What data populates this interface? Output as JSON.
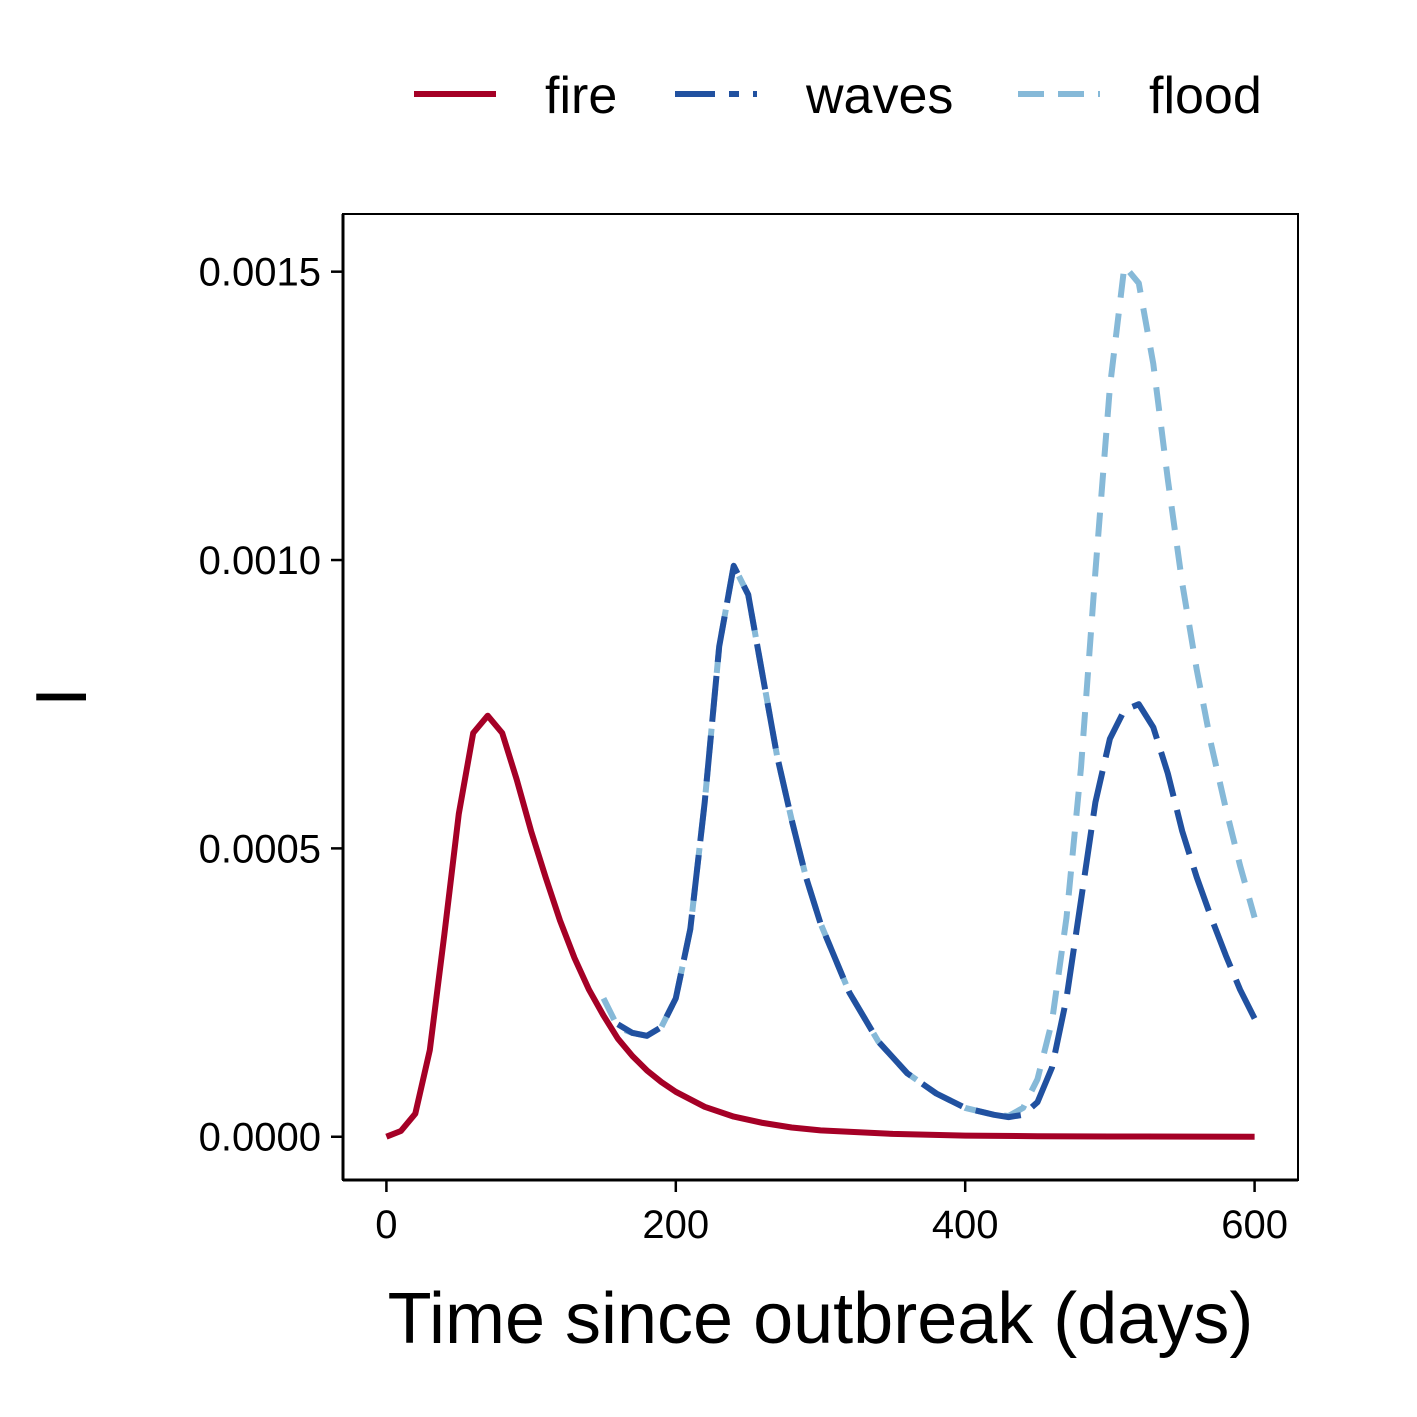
{
  "chart_data": {
    "type": "line",
    "title": "",
    "xlabel": "Time since outbreak (days)",
    "ylabel": "I",
    "xlim": [
      -30,
      630
    ],
    "ylim": [
      -7.5e-05,
      0.0016
    ],
    "x_ticks": [
      0,
      200,
      400,
      600
    ],
    "x_tick_labels": [
      "0",
      "200",
      "400",
      "600"
    ],
    "y_ticks": [
      0,
      0.0005,
      0.001,
      0.0015
    ],
    "y_tick_labels": [
      "0.0000",
      "0.0005",
      "0.0010",
      "0.0015"
    ],
    "grid": false,
    "legend_position": "top",
    "series": [
      {
        "name": "fire",
        "color": "#A50026",
        "style": "solid",
        "points": [
          [
            0,
            0
          ],
          [
            10,
            1e-05
          ],
          [
            20,
            4e-05
          ],
          [
            30,
            0.00015
          ],
          [
            40,
            0.00035
          ],
          [
            50,
            0.00056
          ],
          [
            60,
            0.0007
          ],
          [
            70,
            0.00073
          ],
          [
            80,
            0.0007
          ],
          [
            90,
            0.00062
          ],
          [
            100,
            0.00053
          ],
          [
            110,
            0.00045
          ],
          [
            120,
            0.000375
          ],
          [
            130,
            0.00031
          ],
          [
            140,
            0.000255
          ],
          [
            150,
            0.00021
          ],
          [
            160,
            0.00017
          ],
          [
            170,
            0.00014
          ],
          [
            180,
            0.000115
          ],
          [
            190,
            9.5e-05
          ],
          [
            200,
            7.8e-05
          ],
          [
            220,
            5.2e-05
          ],
          [
            240,
            3.5e-05
          ],
          [
            260,
            2.4e-05
          ],
          [
            280,
            1.6e-05
          ],
          [
            300,
            1.1e-05
          ],
          [
            350,
            5e-06
          ],
          [
            400,
            2e-06
          ],
          [
            450,
            1e-06
          ],
          [
            500,
            5e-07
          ],
          [
            600,
            0
          ]
        ]
      },
      {
        "name": "waves",
        "color": "#2151A0",
        "style": "longdash",
        "points": [
          [
            160,
            0.000195
          ],
          [
            170,
            0.00018
          ],
          [
            180,
            0.000175
          ],
          [
            190,
            0.00019
          ],
          [
            200,
            0.00024
          ],
          [
            210,
            0.00036
          ],
          [
            220,
            0.00058
          ],
          [
            230,
            0.00085
          ],
          [
            240,
            0.00099
          ],
          [
            250,
            0.00094
          ],
          [
            260,
            0.0008
          ],
          [
            270,
            0.00066
          ],
          [
            280,
            0.00055
          ],
          [
            290,
            0.00045
          ],
          [
            300,
            0.00037
          ],
          [
            320,
            0.00025
          ],
          [
            340,
            0.000165
          ],
          [
            360,
            0.00011
          ],
          [
            380,
            7.5e-05
          ],
          [
            400,
            5e-05
          ],
          [
            420,
            3.8e-05
          ],
          [
            430,
            3.4e-05
          ],
          [
            440,
            3.8e-05
          ],
          [
            450,
            6e-05
          ],
          [
            460,
            0.00012
          ],
          [
            470,
            0.00024
          ],
          [
            480,
            0.00041
          ],
          [
            490,
            0.00058
          ],
          [
            500,
            0.00069
          ],
          [
            510,
            0.00074
          ],
          [
            520,
            0.00075
          ],
          [
            530,
            0.00071
          ],
          [
            540,
            0.00063
          ],
          [
            550,
            0.00053
          ],
          [
            560,
            0.00045
          ],
          [
            570,
            0.00038
          ],
          [
            580,
            0.000315
          ],
          [
            590,
            0.000255
          ],
          [
            600,
            0.000205
          ]
        ]
      },
      {
        "name": "flood",
        "color": "#86B9D8",
        "style": "dashed",
        "points": [
          [
            150,
            0.00024
          ],
          [
            160,
            0.00019
          ],
          [
            170,
            0.00018
          ],
          [
            180,
            0.000175
          ],
          [
            190,
            0.00019
          ],
          [
            200,
            0.00024
          ],
          [
            210,
            0.00036
          ],
          [
            220,
            0.00058
          ],
          [
            230,
            0.00085
          ],
          [
            240,
            0.00099
          ],
          [
            250,
            0.00094
          ],
          [
            260,
            0.0008
          ],
          [
            270,
            0.00066
          ],
          [
            280,
            0.00055
          ],
          [
            290,
            0.00045
          ],
          [
            300,
            0.00037
          ],
          [
            320,
            0.00025
          ],
          [
            340,
            0.000165
          ],
          [
            360,
            0.00011
          ],
          [
            380,
            7.5e-05
          ],
          [
            400,
            5e-05
          ],
          [
            420,
            3.8e-05
          ],
          [
            430,
            3.6e-05
          ],
          [
            440,
            5e-05
          ],
          [
            450,
            0.0001
          ],
          [
            460,
            0.0002
          ],
          [
            470,
            0.00038
          ],
          [
            480,
            0.00064
          ],
          [
            490,
            0.00098
          ],
          [
            500,
            0.0013
          ],
          [
            510,
            0.00151
          ],
          [
            520,
            0.00148
          ],
          [
            530,
            0.00134
          ],
          [
            540,
            0.00114
          ],
          [
            550,
            0.00096
          ],
          [
            560,
            0.00081
          ],
          [
            570,
            0.00068
          ],
          [
            580,
            0.00057
          ],
          [
            590,
            0.00047
          ],
          [
            600,
            0.00038
          ]
        ]
      }
    ]
  }
}
